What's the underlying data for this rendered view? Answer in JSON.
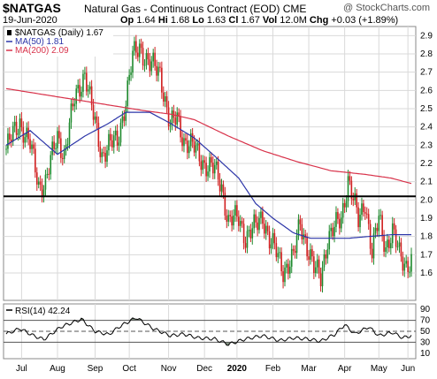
{
  "header": {
    "symbol": "$NATGAS",
    "description": "Natural Gas - Continuous Contract (EOD)",
    "exchange": "CME",
    "credit": "@ StockCharts.com",
    "date": "19-Jun-2020",
    "ohlc": {
      "open_label": "Op",
      "open": "1.64",
      "high_label": "Hi",
      "high": "1.68",
      "low_label": "Lo",
      "low": "1.63",
      "close_label": "Cl",
      "close": "1.67",
      "vol_label": "Vol",
      "vol": "12.0M",
      "chg_label": "Chg",
      "chg": "+0.03 (+1.89%)"
    }
  },
  "colors": {
    "up": "#1f8a2e",
    "down": "#d02020",
    "ma50": "#2c35a8",
    "ma200": "#d8324a",
    "hline": "#000000",
    "rsi": "#000000",
    "rsi_fill": "#7a8a7a"
  },
  "chart_data": [
    {
      "type": "candlestick",
      "legend": [
        {
          "label": "$NATGAS (Daily) 1.67",
          "color": "#000000"
        },
        {
          "label": "MA(50) 1.81",
          "color": "#2c35a8"
        },
        {
          "label": "MA(200) 2.09",
          "color": "#d8324a"
        }
      ],
      "ylim": [
        1.45,
        2.95
      ],
      "y_ticks": [
        "2.9",
        "2.8",
        "2.7",
        "2.6",
        "2.5",
        "2.4",
        "2.3",
        "2.2",
        "2.1",
        "2.0",
        "1.9",
        "1.8",
        "1.7",
        "1.6"
      ],
      "x_ticks": [
        "Jul",
        "Aug",
        "Sep",
        "Oct",
        "Nov",
        "Dec",
        "2020",
        "Feb",
        "Mar",
        "Apr",
        "May",
        "Jun"
      ],
      "horizontal_line": 2.02,
      "close_anchors": [
        [
          0,
          2.28
        ],
        [
          8,
          2.43
        ],
        [
          14,
          2.3
        ],
        [
          19,
          2.08
        ],
        [
          23,
          2.1
        ],
        [
          30,
          2.35
        ],
        [
          34,
          2.25
        ],
        [
          40,
          2.55
        ],
        [
          46,
          2.7
        ],
        [
          50,
          2.5
        ],
        [
          56,
          2.25
        ],
        [
          60,
          2.3
        ],
        [
          65,
          2.32
        ],
        [
          70,
          2.55
        ],
        [
          74,
          2.78
        ],
        [
          78,
          2.84
        ],
        [
          84,
          2.74
        ],
        [
          90,
          2.7
        ],
        [
          96,
          2.4
        ],
        [
          100,
          2.45
        ],
        [
          104,
          2.33
        ],
        [
          110,
          2.28
        ],
        [
          116,
          2.2
        ],
        [
          122,
          2.16
        ],
        [
          126,
          2.08
        ],
        [
          130,
          1.88
        ],
        [
          136,
          1.9
        ],
        [
          140,
          1.8
        ],
        [
          146,
          1.85
        ],
        [
          150,
          1.92
        ],
        [
          154,
          1.78
        ],
        [
          158,
          1.71
        ],
        [
          162,
          1.62
        ],
        [
          168,
          1.68
        ],
        [
          172,
          1.88
        ],
        [
          176,
          1.75
        ],
        [
          180,
          1.62
        ],
        [
          184,
          1.58
        ],
        [
          188,
          1.79
        ],
        [
          192,
          1.84
        ],
        [
          196,
          1.9
        ],
        [
          200,
          2.12
        ],
        [
          206,
          1.88
        ],
        [
          210,
          2.0
        ],
        [
          214,
          1.7
        ],
        [
          218,
          1.9
        ],
        [
          222,
          1.75
        ],
        [
          226,
          1.82
        ],
        [
          230,
          1.7
        ],
        [
          234,
          1.65
        ],
        [
          237,
          1.67
        ]
      ],
      "ma50_anchors": [
        [
          0,
          2.3
        ],
        [
          14,
          2.38
        ],
        [
          30,
          2.25
        ],
        [
          46,
          2.35
        ],
        [
          60,
          2.42
        ],
        [
          70,
          2.48
        ],
        [
          84,
          2.48
        ],
        [
          96,
          2.42
        ],
        [
          110,
          2.34
        ],
        [
          122,
          2.24
        ],
        [
          136,
          2.12
        ],
        [
          146,
          1.98
        ],
        [
          156,
          1.9
        ],
        [
          168,
          1.82
        ],
        [
          178,
          1.79
        ],
        [
          190,
          1.79
        ],
        [
          200,
          1.79
        ],
        [
          212,
          1.8
        ],
        [
          226,
          1.81
        ],
        [
          237,
          1.81
        ]
      ],
      "ma200_anchors": [
        [
          0,
          2.61
        ],
        [
          20,
          2.58
        ],
        [
          40,
          2.55
        ],
        [
          60,
          2.52
        ],
        [
          80,
          2.49
        ],
        [
          96,
          2.47
        ],
        [
          110,
          2.44
        ],
        [
          130,
          2.35
        ],
        [
          150,
          2.27
        ],
        [
          170,
          2.21
        ],
        [
          190,
          2.16
        ],
        [
          210,
          2.14
        ],
        [
          225,
          2.12
        ],
        [
          237,
          2.09
        ]
      ]
    },
    {
      "type": "line",
      "legend": [
        {
          "label": "RSI(14) 42.24",
          "color": "#000000"
        }
      ],
      "ylim": [
        0,
        100
      ],
      "y_ticks": [
        "90",
        "70",
        "50",
        "30",
        "10"
      ],
      "reference_lines": [
        70,
        50,
        30
      ],
      "x_ticks": [
        "Jul",
        "Aug",
        "Sep",
        "Oct",
        "Nov",
        "Dec",
        "2020",
        "Feb",
        "Mar",
        "Apr",
        "May",
        "Jun"
      ],
      "rsi_anchors": [
        [
          0,
          45
        ],
        [
          8,
          55
        ],
        [
          16,
          42
        ],
        [
          22,
          35
        ],
        [
          32,
          58
        ],
        [
          44,
          72
        ],
        [
          52,
          50
        ],
        [
          60,
          44
        ],
        [
          66,
          58
        ],
        [
          76,
          75
        ],
        [
          86,
          55
        ],
        [
          96,
          42
        ],
        [
          104,
          45
        ],
        [
          112,
          38
        ],
        [
          122,
          36
        ],
        [
          130,
          26
        ],
        [
          140,
          36
        ],
        [
          150,
          42
        ],
        [
          160,
          33
        ],
        [
          168,
          38
        ],
        [
          176,
          36
        ],
        [
          184,
          32
        ],
        [
          192,
          44
        ],
        [
          198,
          62
        ],
        [
          204,
          45
        ],
        [
          212,
          58
        ],
        [
          218,
          42
        ],
        [
          226,
          48
        ],
        [
          232,
          38
        ],
        [
          237,
          42.24
        ]
      ]
    }
  ]
}
